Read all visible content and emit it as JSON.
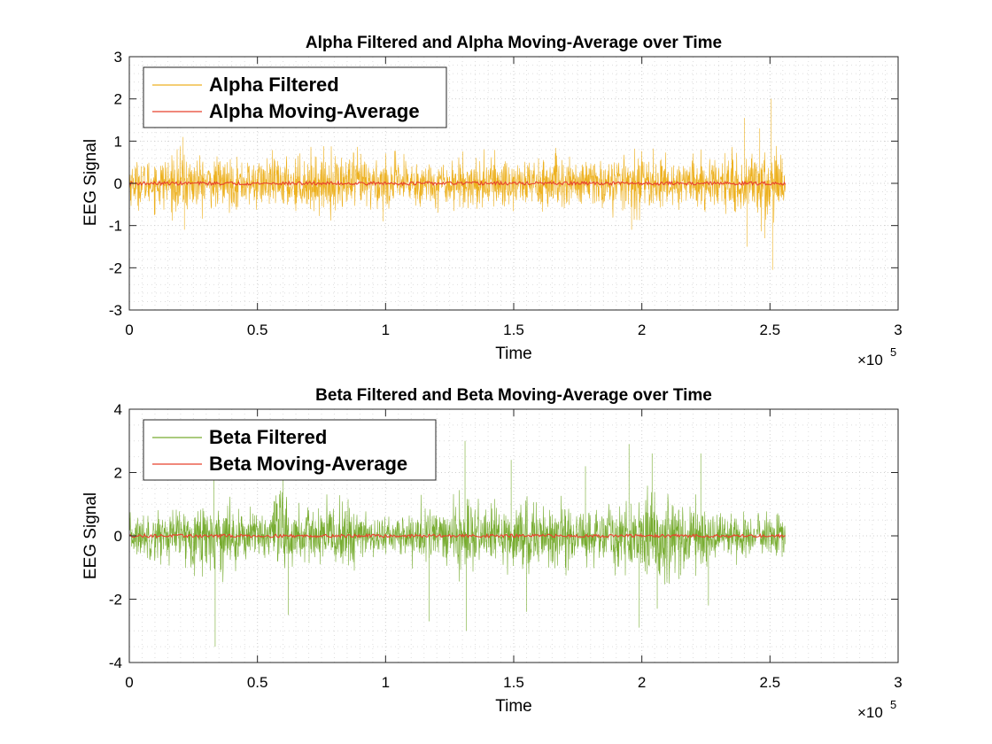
{
  "chart_data": [
    {
      "type": "line",
      "title": "Alpha Filtered and Alpha Moving-Average over Time",
      "xlabel": "Time",
      "ylabel": "EEG Signal",
      "x_exponent_label": "×10",
      "x_exponent": "5",
      "xlim": [
        0,
        300000
      ],
      "ylim": [
        -3,
        3
      ],
      "x_ticks": [
        0,
        50000,
        100000,
        150000,
        200000,
        250000,
        300000
      ],
      "x_tick_labels": [
        "0",
        "0.5",
        "1",
        "1.5",
        "2",
        "2.5",
        "3"
      ],
      "y_ticks": [
        -3,
        -2,
        -1,
        0,
        1,
        2,
        3
      ],
      "y_tick_labels": [
        "-3",
        "-2",
        "-1",
        "0",
        "1",
        "2",
        "3"
      ],
      "grid": true,
      "minor_grid": true,
      "legend_position": "top-left",
      "series": [
        {
          "name": "Alpha Filtered",
          "color": "#EDB120",
          "style": "dense-oscillation",
          "x_range": [
            0,
            256000
          ],
          "envelope": [
            [
              0,
              0.55
            ],
            [
              10000,
              0.6
            ],
            [
              20000,
              0.75
            ],
            [
              30000,
              0.65
            ],
            [
              40000,
              0.6
            ],
            [
              50000,
              0.6
            ],
            [
              60000,
              0.65
            ],
            [
              70000,
              0.7
            ],
            [
              80000,
              0.7
            ],
            [
              90000,
              0.75
            ],
            [
              100000,
              0.65
            ],
            [
              110000,
              0.6
            ],
            [
              120000,
              0.55
            ],
            [
              130000,
              0.6
            ],
            [
              140000,
              0.65
            ],
            [
              150000,
              0.7
            ],
            [
              160000,
              0.7
            ],
            [
              170000,
              0.65
            ],
            [
              180000,
              0.6
            ],
            [
              190000,
              0.65
            ],
            [
              200000,
              0.7
            ],
            [
              210000,
              0.6
            ],
            [
              220000,
              0.65
            ],
            [
              230000,
              0.6
            ],
            [
              240000,
              0.85
            ],
            [
              250000,
              0.95
            ],
            [
              256000,
              0.6
            ]
          ],
          "peaks": [
            [
              21000,
              1.1
            ],
            [
              21500,
              -1.1
            ],
            [
              99000,
              -0.9
            ],
            [
              196000,
              -1.1
            ],
            [
              240000,
              1.55
            ],
            [
              241000,
              -1.5
            ],
            [
              246000,
              1.3
            ],
            [
              248000,
              -1.3
            ],
            [
              250500,
              2.0
            ],
            [
              251000,
              -2.05
            ]
          ]
        },
        {
          "name": "Alpha Moving-Average",
          "color": "#E8422C",
          "style": "flat",
          "x_range": [
            0,
            256000
          ],
          "amplitude": 0.04
        }
      ]
    },
    {
      "type": "line",
      "title": "Beta Filtered and Beta Moving-Average over Time",
      "xlabel": "Time",
      "ylabel": "EEG Signal",
      "x_exponent_label": "×10",
      "x_exponent": "5",
      "xlim": [
        0,
        300000
      ],
      "ylim": [
        -4,
        4
      ],
      "x_ticks": [
        0,
        50000,
        100000,
        150000,
        200000,
        250000,
        300000
      ],
      "x_tick_labels": [
        "0",
        "0.5",
        "1",
        "1.5",
        "2",
        "2.5",
        "3"
      ],
      "y_ticks": [
        -4,
        -2,
        0,
        2,
        4
      ],
      "y_tick_labels": [
        "-4",
        "-2",
        "0",
        "2",
        "4"
      ],
      "grid": true,
      "minor_grid": true,
      "legend_position": "top-left",
      "series": [
        {
          "name": "Beta Filtered",
          "color": "#77AC30",
          "style": "dense-oscillation",
          "x_range": [
            0,
            256000
          ],
          "envelope": [
            [
              0,
              0.7
            ],
            [
              10000,
              0.8
            ],
            [
              20000,
              0.9
            ],
            [
              30000,
              1.1
            ],
            [
              35000,
              1.4
            ],
            [
              40000,
              0.9
            ],
            [
              50000,
              0.8
            ],
            [
              55000,
              1.2
            ],
            [
              60000,
              1.6
            ],
            [
              65000,
              1.0
            ],
            [
              70000,
              0.9
            ],
            [
              80000,
              1.1
            ],
            [
              85000,
              1.3
            ],
            [
              90000,
              0.7
            ],
            [
              100000,
              0.6
            ],
            [
              110000,
              0.8
            ],
            [
              115000,
              1.1
            ],
            [
              120000,
              0.8
            ],
            [
              130000,
              1.2
            ],
            [
              135000,
              1.0
            ],
            [
              140000,
              0.9
            ],
            [
              150000,
              1.0
            ],
            [
              160000,
              1.2
            ],
            [
              170000,
              1.0
            ],
            [
              180000,
              0.9
            ],
            [
              190000,
              1.0
            ],
            [
              200000,
              1.3
            ],
            [
              210000,
              1.4
            ],
            [
              220000,
              1.2
            ],
            [
              230000,
              0.8
            ],
            [
              240000,
              0.7
            ],
            [
              250000,
              0.75
            ],
            [
              256000,
              0.7
            ]
          ],
          "peaks": [
            [
              33000,
              2.2
            ],
            [
              33500,
              -3.5
            ],
            [
              60000,
              2.2
            ],
            [
              62000,
              -2.5
            ],
            [
              117000,
              -2.7
            ],
            [
              131000,
              3.0
            ],
            [
              131500,
              -3.0
            ],
            [
              149000,
              2.4
            ],
            [
              155000,
              -2.4
            ],
            [
              178000,
              2.2
            ],
            [
              195000,
              2.9
            ],
            [
              199000,
              -2.9
            ],
            [
              204000,
              2.6
            ],
            [
              206000,
              -2.3
            ],
            [
              223000,
              2.6
            ],
            [
              226000,
              -2.2
            ]
          ]
        },
        {
          "name": "Beta Moving-Average",
          "color": "#E8422C",
          "style": "flat",
          "x_range": [
            0,
            256000
          ],
          "amplitude": 0.05
        }
      ]
    }
  ]
}
